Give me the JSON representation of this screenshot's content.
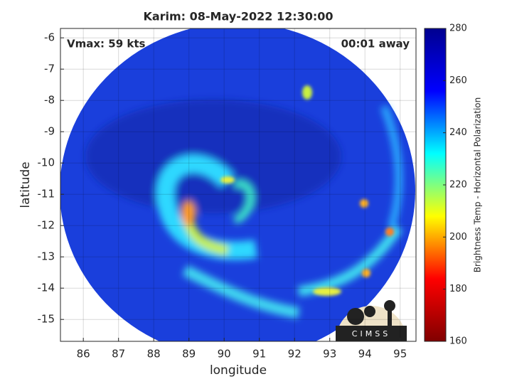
{
  "chart_data": {
    "type": "image",
    "title": "Karim: 08-May-2022 12:30:00",
    "xlabel": "longitude",
    "ylabel": "latitude",
    "annotations": [
      "Vmax: 59 kts",
      "00:01 away"
    ],
    "logo": "CIMSS",
    "xlim": [
      85.35,
      95.45
    ],
    "ylim": [
      -15.7,
      -5.7
    ],
    "xticks": [
      86,
      87,
      88,
      89,
      90,
      91,
      92,
      93,
      94,
      95
    ],
    "yticks": [
      -6,
      -7,
      -8,
      -9,
      -10,
      -11,
      -12,
      -13,
      -14,
      -15
    ],
    "grid": true,
    "colorbar": {
      "label": "Brightness Temp - Horizontal Polarization",
      "colormap": "jet",
      "lim": [
        160,
        280
      ],
      "ticks": [
        160,
        180,
        200,
        220,
        240,
        260,
        280
      ]
    }
  }
}
